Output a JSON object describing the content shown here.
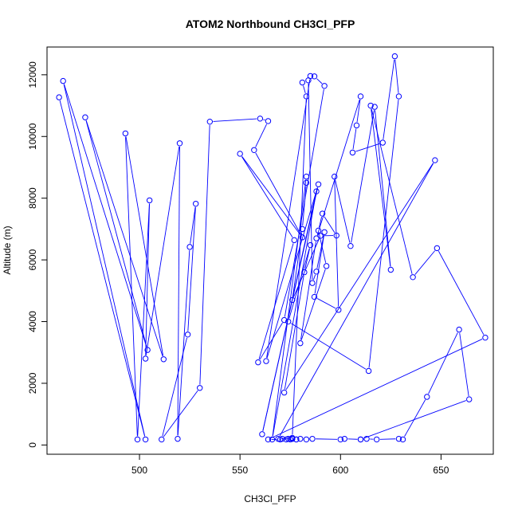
{
  "chart_data": {
    "type": "line",
    "title": "ATOM2 Northbound CH3Cl_PFP",
    "xlabel": "CH3Cl_PFP",
    "ylabel": "Altitude (m)",
    "xlim": [
      454,
      676
    ],
    "ylim": [
      -300,
      12900
    ],
    "xticks": [
      "500",
      "550",
      "600",
      "650"
    ],
    "yticks": [
      "0",
      "2000",
      "4000",
      "6000",
      "8000",
      "10000",
      "12000"
    ],
    "xtick_values": [
      500,
      550,
      600,
      650
    ],
    "ytick_values": [
      0,
      2000,
      4000,
      6000,
      8000,
      10000,
      12000
    ],
    "line_color": "#0000ff",
    "marker": "open-circle",
    "series": [
      {
        "values_x": [
          460,
          503,
          462,
          504,
          473,
          512,
          493,
          499,
          505,
          503,
          520,
          519,
          525,
          528,
          524,
          511,
          530,
          535,
          560,
          564,
          557,
          581,
          550,
          577,
          559,
          572,
          592,
          587,
          585,
          563,
          589,
          561,
          588,
          566,
          583,
          583,
          581,
          576,
          590,
          598,
          591,
          589,
          593,
          580,
          588,
          610,
          608,
          606,
          621,
          627,
          629,
          614,
          574,
          585,
          582,
          572,
          647,
          569,
          576,
          578,
          576,
          583,
          581,
          584,
          586,
          588,
          592,
          587,
          599,
          597,
          605,
          617,
          625,
          615,
          636,
          648,
          672,
          564,
          570,
          571,
          573,
          574,
          575,
          576,
          578,
          580,
          583,
          586,
          600,
          602,
          610,
          613,
          618,
          629,
          631,
          643,
          659,
          664,
          610
        ],
        "values_y": [
          11270,
          180,
          11800,
          3080,
          10620,
          2780,
          10100,
          180,
          7930,
          2800,
          9780,
          200,
          6420,
          7820,
          3580,
          180,
          1850,
          10480,
          10580,
          10500,
          9560,
          6730,
          9440,
          6640,
          2680,
          4050,
          11640,
          11950,
          11960,
          2720,
          8450,
          350,
          8220,
          180,
          8700,
          8500,
          7000,
          4700,
          6780,
          6790,
          7500,
          6950,
          5800,
          3300,
          6700,
          11300,
          10360,
          9480,
          9800,
          12600,
          11300,
          2400,
          4000,
          6480,
          5600,
          1700,
          9230,
          200,
          200,
          180,
          230,
          11300,
          11750,
          11820,
          5250,
          5620,
          6900,
          4800,
          4380,
          8700,
          6450,
          10960,
          5680,
          11000,
          5440,
          6380,
          3480,
          180,
          180,
          200,
          180,
          200,
          180,
          200,
          180,
          200,
          180,
          200,
          180,
          200,
          180,
          200,
          180,
          200,
          180,
          1560,
          3740,
          1480,
          180
        ]
      }
    ]
  }
}
